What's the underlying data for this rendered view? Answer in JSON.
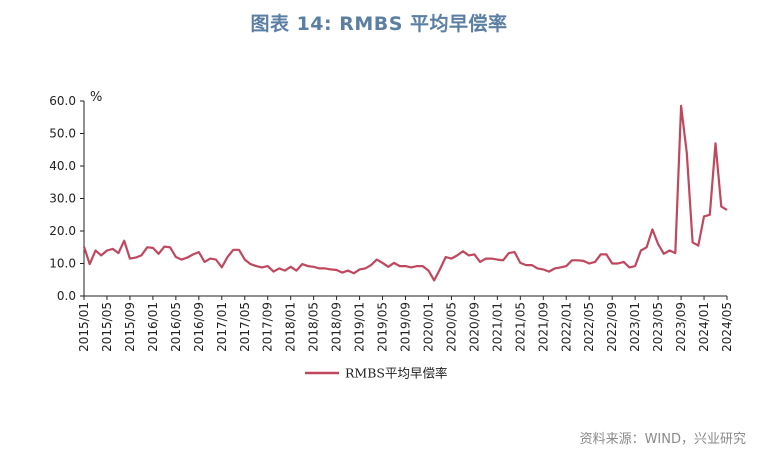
{
  "title": "图表 14: RMBS 平均早偿率",
  "source": "资料来源：WIND，兴业研究",
  "chart_data": {
    "type": "line",
    "title": "图表 14: RMBS 平均早偿率",
    "unit_label": "%",
    "ylim": [
      0,
      60
    ],
    "y_ticks": [
      "0.0",
      "10.0",
      "20.0",
      "30.0",
      "40.0",
      "50.0",
      "60.0"
    ],
    "x_tick_labels": [
      "2015/01",
      "2015/05",
      "2015/09",
      "2016/01",
      "2016/05",
      "2016/09",
      "2017/01",
      "2017/05",
      "2017/09",
      "2018/01",
      "2018/05",
      "2018/09",
      "2019/01",
      "2019/05",
      "2019/09",
      "2020/01",
      "2020/05",
      "2020/09",
      "2021/01",
      "2021/05",
      "2021/09",
      "2022/01",
      "2022/05",
      "2022/09",
      "2023/01",
      "2023/05",
      "2023/09",
      "2024/01",
      "2024/05"
    ],
    "x_start": "2015/01",
    "x_end": "2024/05",
    "legend_position": "bottom",
    "series": [
      {
        "name": "RMBS平均早偿率",
        "color": "#c0485e",
        "values": [
          15.2,
          9.8,
          14.0,
          12.5,
          14.0,
          14.5,
          13.2,
          17.0,
          11.5,
          11.8,
          12.5,
          15.0,
          14.8,
          13.0,
          15.2,
          15.0,
          12.0,
          11.2,
          11.8,
          12.8,
          13.5,
          10.5,
          11.5,
          11.2,
          8.8,
          12.0,
          14.2,
          14.2,
          11.2,
          9.8,
          9.2,
          8.8,
          9.2,
          7.5,
          8.5,
          7.8,
          9.0,
          7.8,
          9.8,
          9.2,
          9.0,
          8.5,
          8.5,
          8.2,
          8.0,
          7.2,
          7.8,
          7.0,
          8.2,
          8.5,
          9.5,
          11.2,
          10.2,
          9.0,
          10.2,
          9.2,
          9.2,
          8.8,
          9.2,
          9.2,
          7.8,
          4.8,
          8.2,
          12.0,
          11.5,
          12.5,
          13.8,
          12.5,
          12.8,
          10.5,
          11.5,
          11.5,
          11.2,
          11.0,
          13.2,
          13.5,
          10.2,
          9.5,
          9.5,
          8.5,
          8.2,
          7.5,
          8.5,
          8.8,
          9.2,
          11.0,
          11.0,
          10.8,
          10.0,
          10.5,
          12.8,
          12.8,
          10.0,
          10.0,
          10.5,
          8.8,
          9.2,
          14.0,
          15.0,
          20.5,
          16.0,
          13.0,
          14.0,
          13.2,
          58.5,
          44.0,
          16.5,
          15.5,
          24.5,
          25.0,
          47.0,
          27.5,
          26.5
        ]
      }
    ]
  }
}
